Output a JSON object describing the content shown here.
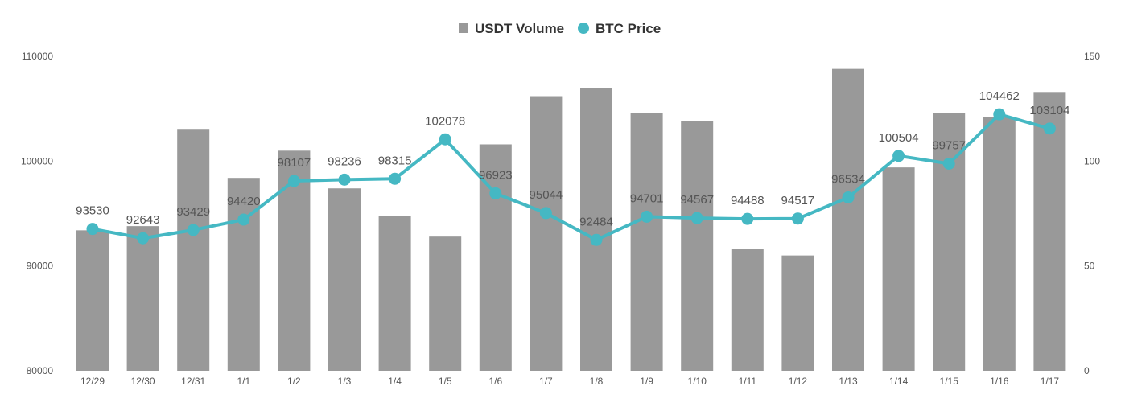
{
  "chart_data": {
    "type": "bar+line",
    "title": "",
    "xlabel": "",
    "ylabel": "",
    "categories": [
      "12/29",
      "12/30",
      "12/31",
      "1/1",
      "1/2",
      "1/3",
      "1/4",
      "1/5",
      "1/6",
      "1/7",
      "1/8",
      "1/9",
      "1/10",
      "1/11",
      "1/12",
      "1/13",
      "1/14",
      "1/15",
      "1/16",
      "1/17"
    ],
    "series": [
      {
        "name": "USDT Volume",
        "type": "bar",
        "axis": "right",
        "color": "#999999",
        "values": [
          67,
          69,
          115,
          92,
          105,
          87,
          74,
          64,
          108,
          131,
          135,
          123,
          119,
          58,
          55,
          144,
          97,
          123,
          121,
          133
        ]
      },
      {
        "name": "BTC Price",
        "type": "line",
        "axis": "left",
        "color": "#45B8C3",
        "values": [
          93530,
          92643,
          93429,
          94420,
          98107,
          98236,
          98315,
          102078,
          96923,
          95044,
          92484,
          94701,
          94567,
          94488,
          94517,
          96534,
          100504,
          99757,
          104462,
          103104
        ]
      }
    ],
    "y_left": {
      "min": 80000,
      "max": 110000,
      "ticks": [
        "80000",
        "90000",
        "100000",
        "110000"
      ]
    },
    "y_right": {
      "min": 0,
      "max": 150,
      "ticks": [
        "0",
        "50",
        "100",
        "150"
      ]
    },
    "grid": false,
    "legend_position": "top-center"
  }
}
